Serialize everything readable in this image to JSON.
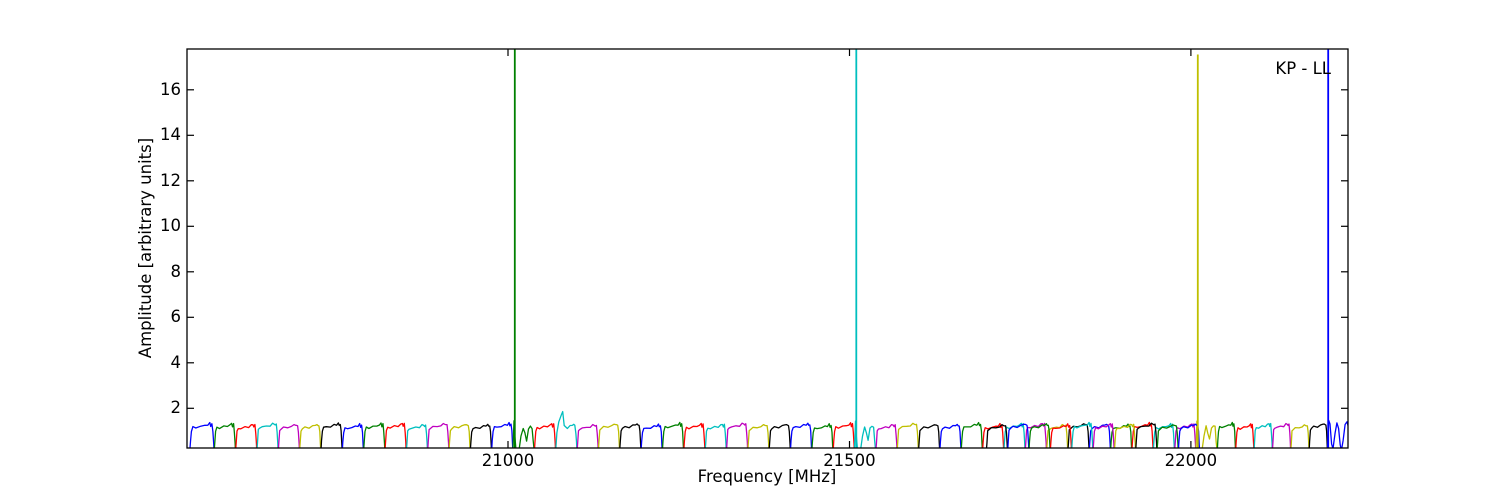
{
  "figure": {
    "background": "#ffffff",
    "frame_color": "#000000"
  },
  "chart_data": {
    "type": "line",
    "title": "",
    "xlabel": "Frequency [MHz]",
    "ylabel": "Amplitude [arbitrary units]",
    "annotation": "KP - LL",
    "xlim": [
      20530,
      22230
    ],
    "ylim": [
      0.25,
      17.8
    ],
    "xticks": [
      21000,
      21500,
      22000
    ],
    "yticks": [
      2,
      4,
      6,
      8,
      10,
      12,
      14,
      16
    ],
    "grid": false,
    "legend": "none",
    "color_cycle": [
      "#0000ff",
      "#008000",
      "#ff0000",
      "#00bfbf",
      "#bf00bf",
      "#bfbf00",
      "#000000"
    ],
    "bands": {
      "main_series": {
        "start_mhz": 20538.5,
        "first_start_mhz": 20534,
        "width_mhz": 31.25,
        "count": 48
      },
      "overlap_series": {
        "start_mhz": 21700.25,
        "width_mhz": 31.25,
        "colors": [
          "#000000",
          "#0000ff",
          "#008000",
          "#ff0000",
          "#00bfbf",
          "#bf00bf",
          "#bfbf00",
          "#000000",
          "#008000",
          "#0000ff"
        ]
      },
      "tail_series": [
        {
          "f0": 22038.5,
          "f1": 22065.4,
          "color": "#008000"
        },
        {
          "f0": 22065.4,
          "f1": 22092.3,
          "color": "#ff0000"
        },
        {
          "f0": 22092.3,
          "f1": 22119.2,
          "color": "#00bfbf"
        },
        {
          "f0": 22119.2,
          "f1": 22146.1,
          "color": "#bf00bf"
        },
        {
          "f0": 22146.1,
          "f1": 22173.0,
          "color": "#bfbf00"
        },
        {
          "f0": 22173.0,
          "f1": 22200.0,
          "color": "#000000"
        }
      ],
      "end_band": {
        "f0": 22200,
        "f1": 22230,
        "color": "#0000ff"
      }
    },
    "band_shapes": {
      "normal": [
        [
          0,
          0.07
        ],
        [
          0.03,
          0.5
        ],
        [
          0.07,
          1.0
        ],
        [
          0.13,
          1.13
        ],
        [
          0.25,
          1.15
        ],
        [
          0.45,
          1.18
        ],
        [
          0.62,
          1.22
        ],
        [
          0.74,
          1.27
        ],
        [
          0.82,
          1.31
        ],
        [
          0.86,
          1.22
        ],
        [
          0.91,
          1.28
        ],
        [
          0.95,
          0.95
        ],
        [
          0.98,
          0.45
        ],
        [
          1,
          0.07
        ]
      ],
      "wshape": [
        [
          0,
          0.1
        ],
        [
          0.05,
          1.45
        ],
        [
          0.09,
          0.8
        ],
        [
          0.14,
          0.22
        ],
        [
          0.2,
          0.06
        ],
        [
          0.28,
          0.12
        ],
        [
          0.38,
          0.8
        ],
        [
          0.48,
          1.16
        ],
        [
          0.56,
          0.9
        ],
        [
          0.64,
          0.62
        ],
        [
          0.73,
          1.08
        ],
        [
          0.82,
          1.24
        ],
        [
          0.9,
          1.14
        ],
        [
          0.95,
          0.55
        ],
        [
          1,
          0.1
        ]
      ],
      "peak": [
        [
          0,
          0.07
        ],
        [
          0.06,
          0.95
        ],
        [
          0.15,
          1.35
        ],
        [
          0.28,
          1.72
        ],
        [
          0.33,
          1.85
        ],
        [
          0.4,
          1.18
        ],
        [
          0.55,
          1.13
        ],
        [
          0.68,
          1.18
        ],
        [
          0.78,
          1.24
        ],
        [
          0.85,
          1.28
        ],
        [
          0.9,
          1.2
        ],
        [
          0.95,
          0.9
        ],
        [
          0.98,
          0.45
        ],
        [
          1,
          0.07
        ]
      ],
      "wend": [
        [
          0,
          0.12
        ],
        [
          0.06,
          1.52
        ],
        [
          0.12,
          1.28
        ],
        [
          0.2,
          0.48
        ],
        [
          0.27,
          0.22
        ],
        [
          0.37,
          0.92
        ],
        [
          0.46,
          1.4
        ],
        [
          0.54,
          1.08
        ],
        [
          0.62,
          0.45
        ],
        [
          0.68,
          0.15
        ],
        [
          0.76,
          0.6
        ],
        [
          0.86,
          1.32
        ],
        [
          0.95,
          1.38
        ],
        [
          1,
          1.3
        ]
      ]
    },
    "spike_band_indices": [
      15,
      31,
      47
    ],
    "peak_band": {
      "index": 17,
      "freq_mhz": 21080,
      "amplitude": 1.85
    },
    "baseline_amplitude": 1.25,
    "spikes": [
      {
        "freq_mhz": 21010,
        "amplitude": 18.0,
        "color": "#008000"
      },
      {
        "freq_mhz": 21510,
        "amplitude": 18.0,
        "color": "#00bfbf"
      },
      {
        "freq_mhz": 22010,
        "amplitude": 17.55,
        "color": "#bfbf00"
      },
      {
        "freq_mhz": 22201,
        "amplitude": 18.0,
        "color": "#0000ff"
      }
    ]
  }
}
